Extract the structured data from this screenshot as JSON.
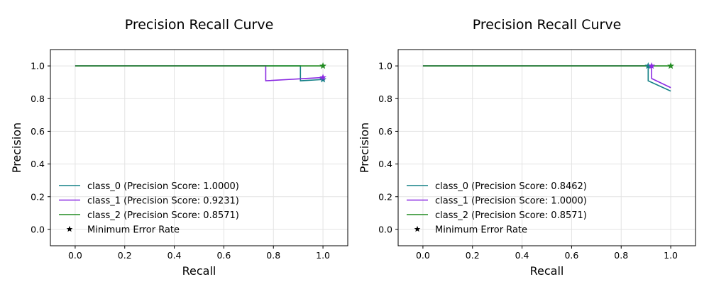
{
  "chart_data": [
    {
      "type": "line",
      "title": "Precision Recall Curve",
      "xlabel": "Recall",
      "ylabel": "Precision",
      "xlim": [
        -0.1,
        1.1
      ],
      "ylim": [
        -0.1,
        1.1
      ],
      "xticks": [
        "0.0",
        "0.2",
        "0.4",
        "0.6",
        "0.8",
        "1.0"
      ],
      "yticks": [
        "0.0",
        "0.2",
        "0.4",
        "0.6",
        "0.8",
        "1.0"
      ],
      "grid": true,
      "legend_position": "lower-left",
      "series": [
        {
          "name": "class_0 (Precision Score: 1.0000)",
          "color": "#138086",
          "points": [
            [
              0.0,
              1.0
            ],
            [
              0.909,
              1.0
            ],
            [
              0.909,
              0.909
            ],
            [
              1.0,
              0.917
            ]
          ],
          "marker_point": [
            1.0,
            0.917
          ]
        },
        {
          "name": "class_1 (Precision Score: 0.9231)",
          "color": "#8a2be2",
          "points": [
            [
              0.0,
              1.0
            ],
            [
              0.769,
              1.0
            ],
            [
              0.769,
              0.909
            ],
            [
              1.0,
              0.929
            ]
          ],
          "marker_point": [
            1.0,
            0.929
          ]
        },
        {
          "name": "class_2 (Precision Score: 0.8571)",
          "color": "#228b22",
          "points": [
            [
              0.0,
              1.0
            ],
            [
              1.0,
              1.0
            ]
          ],
          "marker_point": [
            1.0,
            1.0
          ]
        }
      ],
      "marker_legend": "Minimum Error Rate"
    },
    {
      "type": "line",
      "title": "Precision Recall Curve",
      "xlabel": "Recall",
      "ylabel": "Precision",
      "xlim": [
        -0.1,
        1.1
      ],
      "ylim": [
        -0.1,
        1.1
      ],
      "xticks": [
        "0.0",
        "0.2",
        "0.4",
        "0.6",
        "0.8",
        "1.0"
      ],
      "yticks": [
        "0.0",
        "0.2",
        "0.4",
        "0.6",
        "0.8",
        "1.0"
      ],
      "grid": true,
      "legend_position": "lower-left",
      "series": [
        {
          "name": "class_0 (Precision Score: 0.8462)",
          "color": "#138086",
          "points": [
            [
              0.0,
              1.0
            ],
            [
              0.909,
              1.0
            ],
            [
              0.909,
              0.909
            ],
            [
              1.0,
              0.846
            ]
          ],
          "marker_point": [
            0.909,
            1.0
          ]
        },
        {
          "name": "class_1 (Precision Score: 1.0000)",
          "color": "#8a2be2",
          "points": [
            [
              0.0,
              1.0
            ],
            [
              0.923,
              1.0
            ],
            [
              0.923,
              0.923
            ],
            [
              1.0,
              0.867
            ]
          ],
          "marker_point": [
            0.923,
            1.0
          ]
        },
        {
          "name": "class_2 (Precision Score: 0.8571)",
          "color": "#228b22",
          "points": [
            [
              0.0,
              1.0
            ],
            [
              1.0,
              1.0
            ]
          ],
          "marker_point": [
            1.0,
            1.0
          ]
        }
      ],
      "marker_legend": "Minimum Error Rate"
    }
  ]
}
